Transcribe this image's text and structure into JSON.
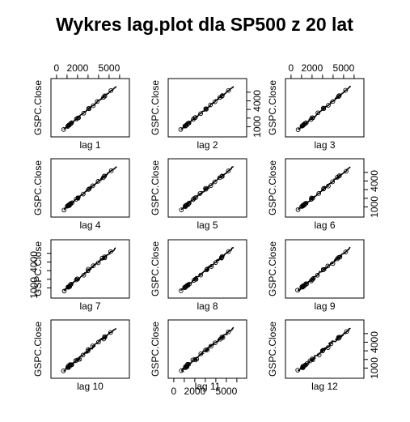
{
  "chart_data": {
    "type": "scatter",
    "title": "Wykres lag.plot dla SP500 z 20 lat",
    "ylabel": "GSPC.Close",
    "panel_labels": [
      "lag 1",
      "lag 2",
      "lag 3",
      "lag 4",
      "lag 5",
      "lag 6",
      "lag 7",
      "lag 8",
      "lag 9",
      "lag 10",
      "lag 11",
      "lag 12"
    ],
    "x_ticks": [
      "0",
      "2000",
      "5000"
    ],
    "y_ticks": [
      "1000",
      "4000"
    ],
    "xlim": [
      -300,
      6700
    ],
    "ylim": [
      100,
      6300
    ],
    "grid": false,
    "layout": "4x3 panels, x axis labels alternate top/bottom, y axis labels alternate right/left",
    "trend": [
      {
        "x": 680,
        "y": 670
      },
      {
        "x": 1000,
        "y": 1000
      },
      {
        "x": 1250,
        "y": 1240
      },
      {
        "x": 1500,
        "y": 1500
      },
      {
        "x": 1300,
        "y": 1330
      },
      {
        "x": 1050,
        "y": 1040
      },
      {
        "x": 1200,
        "y": 1210
      },
      {
        "x": 1500,
        "y": 1490
      },
      {
        "x": 1250,
        "y": 1270
      },
      {
        "x": 900,
        "y": 880
      },
      {
        "x": 1400,
        "y": 1410
      },
      {
        "x": 2000,
        "y": 1990
      },
      {
        "x": 2100,
        "y": 2080
      },
      {
        "x": 1900,
        "y": 1920
      },
      {
        "x": 2400,
        "y": 2390
      },
      {
        "x": 2800,
        "y": 2790
      },
      {
        "x": 3300,
        "y": 3290
      },
      {
        "x": 3000,
        "y": 3020
      },
      {
        "x": 3500,
        "y": 3480
      },
      {
        "x": 3800,
        "y": 3810
      },
      {
        "x": 4400,
        "y": 4390
      },
      {
        "x": 4800,
        "y": 4780
      },
      {
        "x": 4200,
        "y": 4230
      },
      {
        "x": 4700,
        "y": 4690
      },
      {
        "x": 5200,
        "y": 5180
      },
      {
        "x": 5800,
        "y": 5790
      }
    ]
  }
}
